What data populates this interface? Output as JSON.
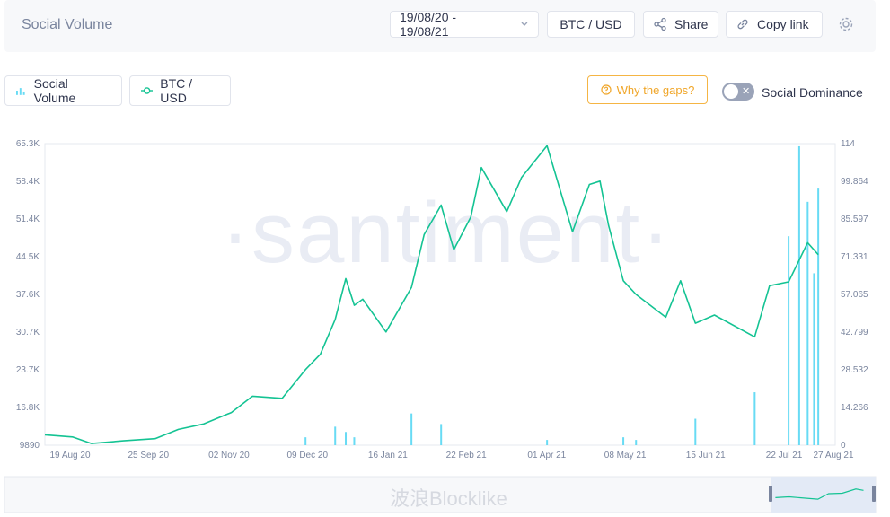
{
  "header": {
    "title": "Social Volume",
    "date_range": "19/08/20 - 19/08/21",
    "pair": "BTC / USD",
    "share": "Share",
    "copy_link": "Copy link"
  },
  "legend": {
    "social_volume": "Social Volume",
    "btc_usd": "BTC / USD",
    "why_gaps": "Why the gaps?",
    "social_dominance": "Social Dominance"
  },
  "watermark": "·santiment·",
  "overlay": "波浪Blocklike",
  "colors": {
    "price": "#14c393",
    "volume": "#68dbf4",
    "accent": "#f0a629"
  },
  "chart_data": {
    "type": "line",
    "x_ticks": [
      "19 Aug 20",
      "25 Sep 20",
      "02 Nov 20",
      "09 Dec 20",
      "16 Jan 21",
      "22 Feb 21",
      "01 Apr 21",
      "08 May 21",
      "15 Jun 21",
      "22 Jul 21",
      "27 Aug 21"
    ],
    "y_left_ticks": [
      "65.3K",
      "58.4K",
      "51.4K",
      "44.5K",
      "37.6K",
      "30.7K",
      "23.7K",
      "16.8K",
      "9890"
    ],
    "y_right_ticks": [
      "114",
      "99.864",
      "85.597",
      "71.331",
      "57.065",
      "42.799",
      "28.532",
      "14.266",
      "0"
    ],
    "y_left_range": [
      9890,
      65300
    ],
    "y_right_range": [
      0,
      114
    ],
    "series": [
      {
        "name": "BTC / USD",
        "axis": "left",
        "x": [
          "2020-08-19",
          "2020-09-01",
          "2020-09-10",
          "2020-09-25",
          "2020-10-10",
          "2020-10-21",
          "2020-11-02",
          "2020-11-15",
          "2020-11-25",
          "2020-12-09",
          "2020-12-20",
          "2020-12-27",
          "2021-01-03",
          "2021-01-08",
          "2021-01-12",
          "2021-01-16",
          "2021-01-27",
          "2021-02-08",
          "2021-02-14",
          "2021-02-22",
          "2021-02-28",
          "2021-03-08",
          "2021-03-13",
          "2021-03-25",
          "2021-04-01",
          "2021-04-13",
          "2021-04-25",
          "2021-05-03",
          "2021-05-08",
          "2021-05-12",
          "2021-05-19",
          "2021-05-25",
          "2021-06-08",
          "2021-06-15",
          "2021-06-22",
          "2021-07-01",
          "2021-07-20",
          "2021-07-27",
          "2021-08-05",
          "2021-08-14",
          "2021-08-19"
        ],
        "y": [
          11800,
          11400,
          10200,
          10700,
          11100,
          12800,
          13800,
          15900,
          18900,
          18500,
          23800,
          26600,
          33000,
          40500,
          35600,
          36700,
          30700,
          38900,
          48600,
          54000,
          45800,
          51800,
          60900,
          52800,
          59100,
          64900,
          49100,
          57800,
          58400,
          50300,
          40100,
          37600,
          33400,
          40100,
          32300,
          33800,
          29800,
          39200,
          39900,
          47100,
          44900
        ]
      },
      {
        "name": "Social Volume",
        "axis": "right",
        "type": "bar",
        "x": [
          "2020-12-20",
          "2021-01-03",
          "2021-01-08",
          "2021-01-12",
          "2021-02-08",
          "2021-02-22",
          "2021-04-13",
          "2021-05-19",
          "2021-05-25",
          "2021-06-22",
          "2021-07-20",
          "2021-08-05",
          "2021-08-10",
          "2021-08-14",
          "2021-08-17",
          "2021-08-19"
        ],
        "y": [
          3,
          7,
          5,
          3,
          12,
          8,
          2,
          3,
          2,
          10,
          20,
          79,
          113,
          92,
          65,
          97
        ]
      }
    ]
  }
}
